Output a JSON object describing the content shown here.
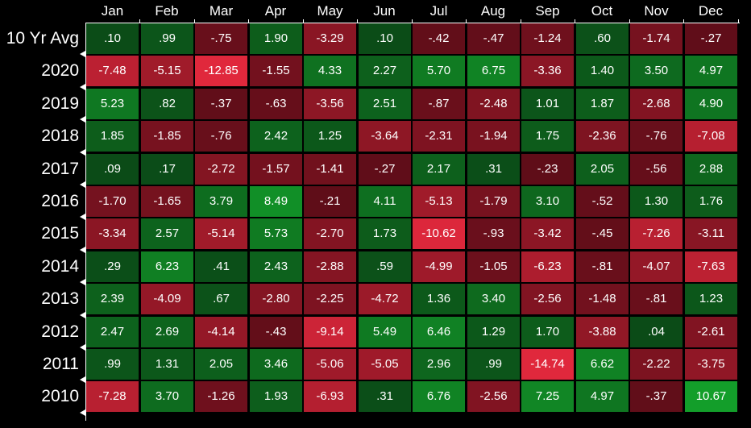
{
  "chart_data": {
    "type": "heatmap",
    "columns": [
      "Jan",
      "Feb",
      "Mar",
      "Apr",
      "May",
      "Jun",
      "Jul",
      "Aug",
      "Sep",
      "Oct",
      "Nov",
      "Dec"
    ],
    "rows": [
      {
        "label": "10 Yr Avg",
        "values": [
          ".10",
          ".99",
          "-.75",
          "1.90",
          "-3.29",
          ".10",
          "-.42",
          "-.47",
          "-1.24",
          ".60",
          "-1.74",
          "-.27"
        ]
      },
      {
        "label": "2020",
        "values": [
          "-7.48",
          "-5.15",
          "-12.85",
          "-1.55",
          "4.33",
          "2.27",
          "5.70",
          "6.75",
          "-3.36",
          "1.40",
          "3.50",
          "4.97"
        ]
      },
      {
        "label": "2019",
        "values": [
          "5.23",
          ".82",
          "-.37",
          "-.63",
          "-3.56",
          "2.51",
          "-.87",
          "-2.48",
          "1.01",
          "1.87",
          "-2.68",
          "4.90"
        ]
      },
      {
        "label": "2018",
        "values": [
          "1.85",
          "-1.85",
          "-.76",
          "2.42",
          "1.25",
          "-3.64",
          "-2.31",
          "-1.94",
          "1.75",
          "-2.36",
          "-.76",
          "-7.08"
        ]
      },
      {
        "label": "2017",
        "values": [
          ".09",
          ".17",
          "-2.72",
          "-1.57",
          "-1.41",
          "-.27",
          "2.17",
          ".31",
          "-.23",
          "2.05",
          "-.56",
          "2.88"
        ]
      },
      {
        "label": "2016",
        "values": [
          "-1.70",
          "-1.65",
          "3.79",
          "8.49",
          "-.21",
          "4.11",
          "-5.13",
          "-1.79",
          "3.10",
          "-.52",
          "1.30",
          "1.76"
        ]
      },
      {
        "label": "2015",
        "values": [
          "-3.34",
          "2.57",
          "-5.14",
          "5.73",
          "-2.70",
          "1.73",
          "-10.62",
          "-.93",
          "-3.42",
          "-.45",
          "-7.26",
          "-3.11"
        ]
      },
      {
        "label": "2014",
        "values": [
          ".29",
          "6.23",
          ".41",
          "2.43",
          "-2.88",
          ".59",
          "-4.99",
          "-1.05",
          "-6.23",
          "-.81",
          "-4.07",
          "-7.63"
        ]
      },
      {
        "label": "2013",
        "values": [
          "2.39",
          "-4.09",
          ".67",
          "-2.80",
          "-2.25",
          "-4.72",
          "1.36",
          "3.40",
          "-2.56",
          "-1.48",
          "-.81",
          "1.23"
        ]
      },
      {
        "label": "2012",
        "values": [
          "2.47",
          "2.69",
          "-4.14",
          "-.43",
          "-9.14",
          "5.49",
          "6.46",
          "1.29",
          "1.70",
          "-3.88",
          ".04",
          "-2.61"
        ]
      },
      {
        "label": "2011",
        "values": [
          ".99",
          "1.31",
          "2.05",
          "3.46",
          "-5.06",
          "-5.05",
          "2.96",
          ".99",
          "-14.74",
          "6.62",
          "-2.22",
          "-3.75"
        ]
      },
      {
        "label": "2010",
        "values": [
          "-7.28",
          "3.70",
          "-1.26",
          "1.93",
          "-6.93",
          ".31",
          "6.76",
          "-2.56",
          "7.25",
          "4.97",
          "-.37",
          "10.67"
        ]
      }
    ],
    "colors": {
      "positive_base": "#0b4a17",
      "positive_strong": "#13a02b",
      "negative_base": "#5a0c17",
      "negative_strong": "#e0283c",
      "text": "#ffffff",
      "background": "#000000",
      "grid": "#000000"
    },
    "title": "",
    "xlabel": "",
    "ylabel": ""
  }
}
